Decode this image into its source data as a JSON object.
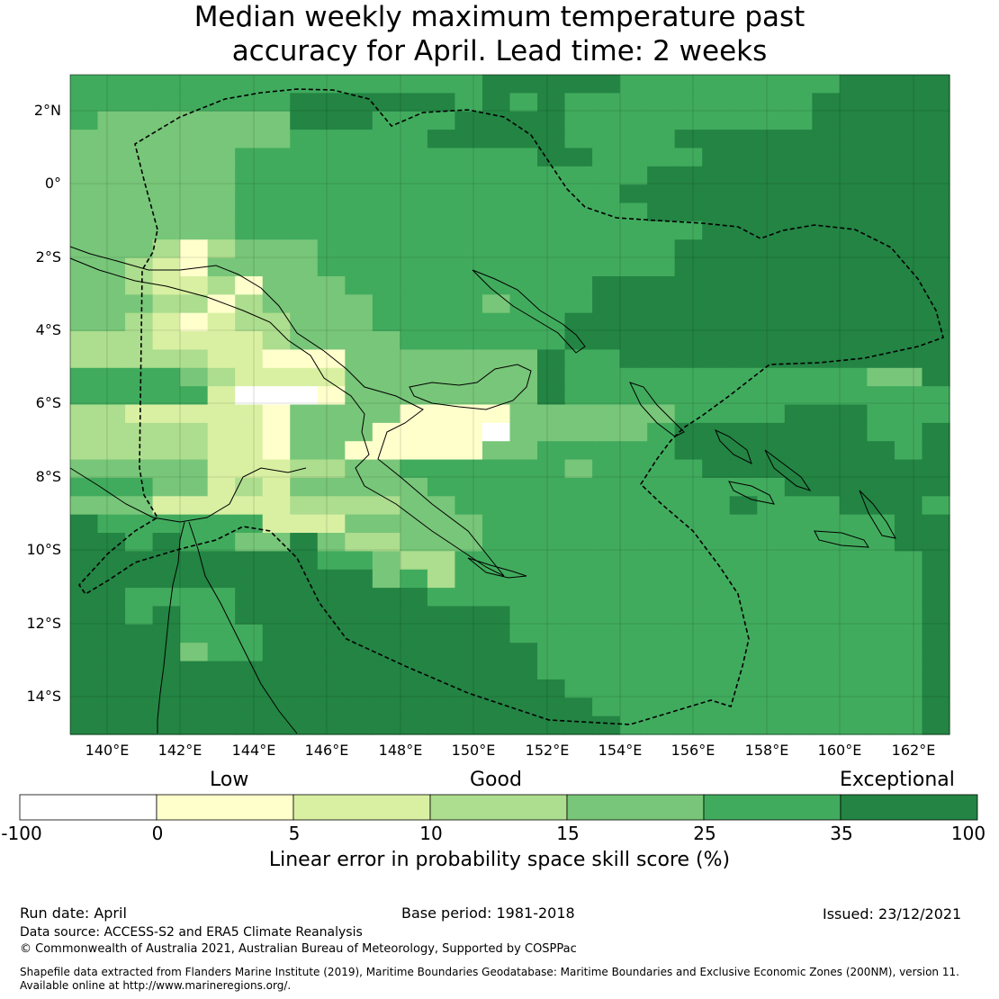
{
  "title": {
    "line1": "Median weekly maximum temperature past",
    "line2": "accuracy for April. Lead time: 2 weeks"
  },
  "map": {
    "lat_labels": [
      "2°N",
      "0°",
      "2°S",
      "4°S",
      "6°S",
      "8°S",
      "10°S",
      "12°S",
      "14°S"
    ],
    "lon_labels": [
      "140°E",
      "142°E",
      "144°E",
      "146°E",
      "148°E",
      "150°E",
      "152°E",
      "154°E",
      "156°E",
      "158°E",
      "160°E",
      "162°E"
    ],
    "grid_legend": "0=<0 (white), 1=0-5, 2=5-10, 3=10-15, 4=15-25, 5=25-35, 6=35-100",
    "grid": [
      "55555555555555566666555555556666",
      "55555555666666565655555555566666",
      "54444444666555666655555555566666",
      "44444444555556666655556666666666",
      "44444455555555555665555666666666",
      "44444455555555555555566666666666",
      "44444455555555555555666666666666",
      "44444455555555555555566666666666",
      "44444455555555555555555666666666",
      "44431344455555555555556666666666",
      "44321444455555555555556666666666",
      "44322314445555555556666666666666",
      "44433134444555545556666666666666",
      "44321233444555555566666666666666",
      "33322223444455555566666666666666",
      "33333221114444444655666666666666",
      "55554322224444444655555555555446",
      "55555200014444444655555555555555",
      "33222221444411114444445555666555",
      "33333221444111104444456666666556",
      "33333221441111144555556666666656",
      "44444222334455555545555666666666",
      "55544232444445555555555555666666",
      "44422222333344555555555565556665",
      "65555552224444455555555555555566",
      "66565544643344455555555555555566",
      "66666666655433555555555555555556",
      "66666666666453555555555555555556",
      "66555566666665555555555555555556",
      "66565566666666665555555555555556",
      "66665556666666665555555555555556",
      "66664556666666666555555555555556",
      "66666666666666666555555555555556",
      "66666666666666666655555555555556",
      "66666666666666666665555555555556",
      "66666666666666666666555555555556"
    ]
  },
  "colorbar": {
    "categories": [
      "Low",
      "Good",
      "Exceptional"
    ],
    "ticks": [
      "-100",
      "0",
      "5",
      "10",
      "15",
      "25",
      "35",
      "100"
    ],
    "colors": [
      "#ffffff",
      "#ffffcc",
      "#d9f0a3",
      "#addd8e",
      "#78c679",
      "#41ab5d",
      "#238443"
    ],
    "title": "Linear error in probability space skill score (%)"
  },
  "footer": {
    "run_date": "Run date: April",
    "base_period": "Base period: 1981-2018",
    "issued": "Issued: 23/12/2021",
    "data_source": "Data source: ACCESS-S2 and ERA5 Climate Reanalysis",
    "copyright": "© Commonwealth of Australia 2021, Australian Bureau of Meteorology, Supported by COSPPac",
    "shapefile1": "Shapefile data extracted from Flanders Marine Institute (2019), Maritime Boundaries Geodatabase: Maritime Boundaries and Exclusive Economic Zones (200NM), version 11.",
    "shapefile2": "Available online at http://www.marineregions.org/."
  }
}
